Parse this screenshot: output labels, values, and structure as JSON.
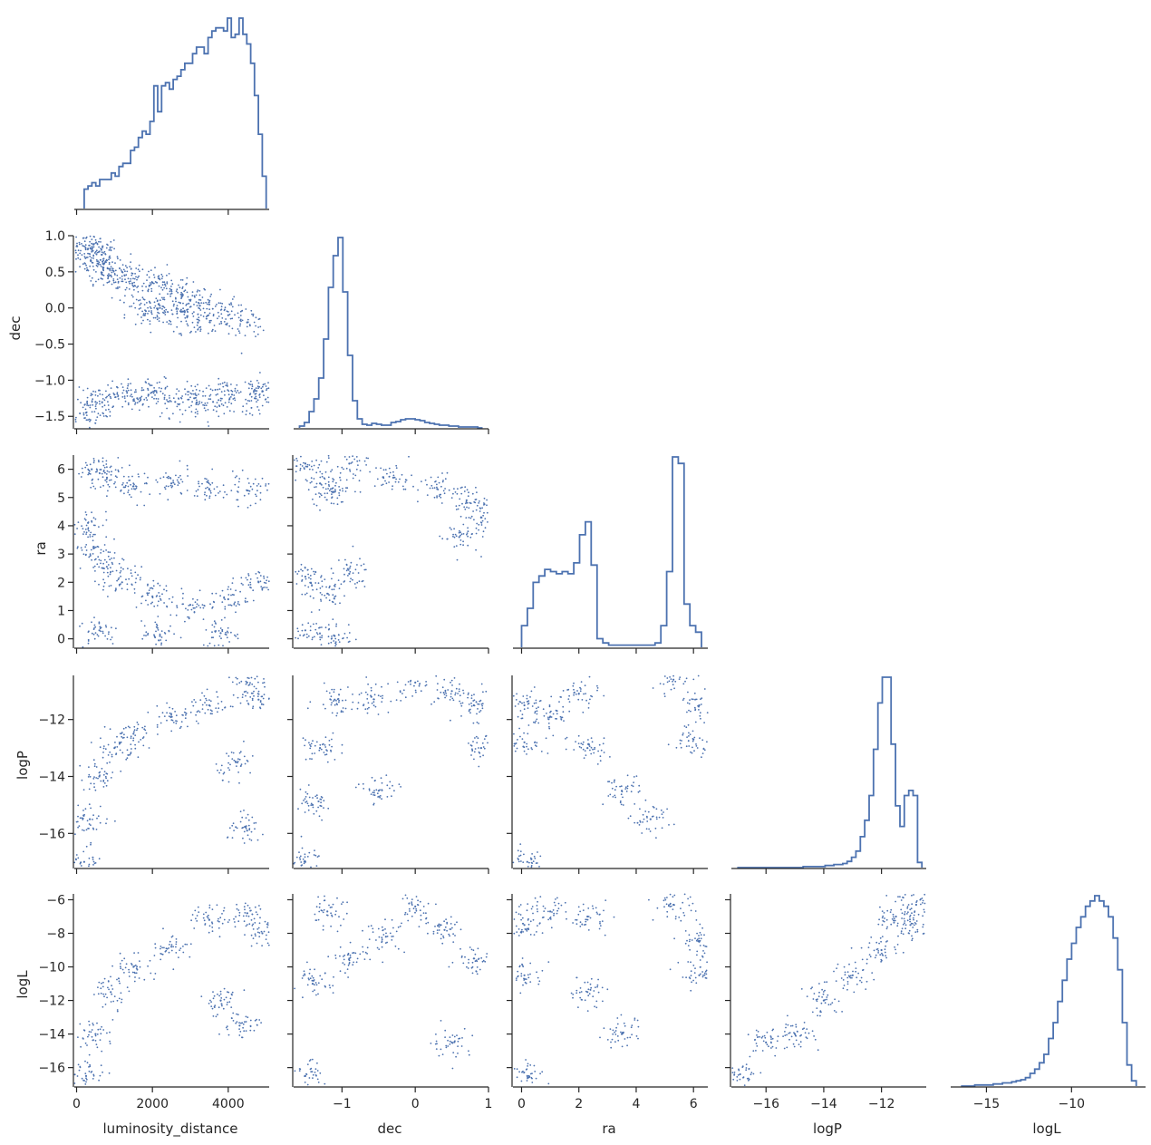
{
  "chart_data": {
    "type": "scatter",
    "variables": [
      "luminosity_distance",
      "dec",
      "ra",
      "logP",
      "logL"
    ],
    "axis_labels": {
      "luminosity_distance": "luminosity_distance",
      "dec": "dec",
      "ra": "ra",
      "logP": "logP",
      "logL": "logL"
    },
    "ranges": {
      "luminosity_distance": [
        -60,
        5080
      ],
      "dec": [
        -1.66,
        1.0
      ],
      "ra": [
        -0.3,
        6.5
      ],
      "logP": [
        -17.2,
        -10.45
      ],
      "logL": [
        -17.1,
        -5.65
      ]
    },
    "ticks": {
      "luminosity_distance": [
        0,
        2000,
        4000
      ],
      "dec": [
        -1,
        0,
        1
      ],
      "ra": [
        0,
        2,
        4,
        6
      ],
      "logP": [
        -16,
        -14,
        -12
      ],
      "logL": [
        -15,
        -10
      ]
    },
    "tick_labels": {
      "luminosity_distance": [
        "0",
        "2000",
        "4000"
      ],
      "dec": [
        "−1",
        "0",
        "1"
      ],
      "ra": [
        "0",
        "2",
        "4",
        "6"
      ],
      "logP": [
        "−16",
        "−14",
        "−12"
      ],
      "logL": [
        "−15",
        "−10"
      ]
    },
    "y_ticks": {
      "dec": [
        1.0,
        0.5,
        0.0,
        -0.5,
        -1.0,
        -1.5
      ],
      "ra": [
        6,
        5,
        4,
        3,
        2,
        1,
        0
      ],
      "logP": [
        -12,
        -14,
        -16
      ],
      "logL": [
        -6,
        -8,
        -10,
        -12,
        -14,
        -16
      ]
    },
    "y_tick_labels": {
      "dec": [
        "1.0",
        "0.5",
        "0.0",
        "−0.5",
        "−1.0",
        "−1.5"
      ],
      "ra": [
        "6",
        "5",
        "4",
        "3",
        "2",
        "1",
        "0"
      ],
      "logP": [
        "−12",
        "−14",
        "−16"
      ],
      "logL": [
        "−6",
        "−8",
        "−10",
        "−12",
        "−14",
        "−16"
      ]
    },
    "marginals": {
      "luminosity_distance": {
        "edges": [
          200,
          5000
        ],
        "counts": [
          6,
          7,
          8,
          7,
          9,
          9,
          9,
          11,
          10,
          13,
          14,
          14,
          18,
          19,
          22,
          24,
          23,
          27,
          38,
          30,
          38,
          39,
          37,
          40,
          41,
          43,
          45,
          45,
          48,
          50,
          50,
          48,
          53,
          55,
          56,
          56,
          55,
          59,
          53,
          54,
          59,
          54,
          51,
          45,
          35,
          23,
          10
        ]
      },
      "dec": {
        "edges": [
          -1.58,
          0.92
        ],
        "counts": [
          2,
          6,
          18,
          32,
          55,
          98,
          155,
          190,
          210,
          150,
          80,
          30,
          10,
          4,
          3,
          5,
          4,
          3,
          3,
          6,
          7,
          9,
          10,
          10,
          9,
          8,
          6,
          5,
          4,
          3,
          3,
          2,
          2,
          1,
          1,
          1,
          1,
          0
        ]
      },
      "ra": {
        "edges": [
          0.0,
          6.28
        ],
        "counts": [
          10,
          18,
          30,
          33,
          36,
          35,
          34,
          35,
          34,
          39,
          52,
          58,
          38,
          4,
          2,
          1,
          1,
          1,
          1,
          1,
          1,
          1,
          1,
          2,
          10,
          35,
          88,
          85,
          20,
          10,
          7
        ]
      },
      "logP": {
        "edges": [
          -17.0,
          -10.6
        ],
        "counts": [
          0,
          0,
          0,
          0,
          0,
          0,
          0,
          0,
          0,
          0,
          0,
          0,
          0,
          0,
          0,
          1,
          1,
          1,
          1,
          1,
          2,
          2,
          3,
          3,
          4,
          6,
          10,
          16,
          30,
          46,
          70,
          115,
          160,
          185,
          185,
          120,
          60,
          40,
          70,
          75,
          70,
          5
        ]
      },
      "logL": {
        "edges": [
          -16.5,
          -6.2
        ],
        "counts": [
          0,
          0,
          0,
          1,
          1,
          1,
          1,
          2,
          2,
          3,
          3,
          4,
          5,
          6,
          8,
          12,
          16,
          22,
          30,
          45,
          60,
          80,
          100,
          120,
          135,
          150,
          160,
          170,
          175,
          180,
          175,
          170,
          160,
          140,
          110,
          60,
          20,
          5
        ]
      }
    },
    "scatter_series": {
      "luminosity_distance-dec": [
        [
          300,
          0.82
        ],
        [
          450,
          0.88
        ],
        [
          380,
          0.65
        ],
        [
          600,
          0.78
        ],
        [
          700,
          0.55
        ],
        [
          900,
          0.45
        ],
        [
          1200,
          0.5
        ],
        [
          1500,
          0.3
        ],
        [
          2000,
          0.35
        ],
        [
          2500,
          0.25
        ],
        [
          3000,
          0.1
        ],
        [
          3500,
          0.05
        ],
        [
          4000,
          -0.1
        ],
        [
          4500,
          -0.2
        ],
        [
          1800,
          -0.1
        ],
        [
          2200,
          0.0
        ],
        [
          2800,
          -0.05
        ],
        [
          3200,
          -0.2
        ],
        [
          250,
          -1.45
        ],
        [
          500,
          -1.3
        ],
        [
          1000,
          -1.2
        ],
        [
          1600,
          -1.25
        ],
        [
          2100,
          -1.15
        ],
        [
          2600,
          -1.3
        ],
        [
          3100,
          -1.25
        ],
        [
          3600,
          -1.3
        ],
        [
          4100,
          -1.2
        ],
        [
          4700,
          -1.25
        ],
        [
          4900,
          -1.15
        ]
      ],
      "luminosity_distance-ra": [
        [
          400,
          6.0
        ],
        [
          800,
          5.7
        ],
        [
          1500,
          5.4
        ],
        [
          2500,
          5.5
        ],
        [
          3500,
          5.3
        ],
        [
          4500,
          5.25
        ],
        [
          300,
          4.1
        ],
        [
          450,
          3.2
        ],
        [
          700,
          2.5
        ],
        [
          1200,
          2.0
        ],
        [
          2000,
          1.5
        ],
        [
          3000,
          1.2
        ],
        [
          4000,
          1.4
        ],
        [
          4800,
          2.0
        ],
        [
          600,
          0.3
        ],
        [
          2200,
          0.1
        ],
        [
          3800,
          0.2
        ]
      ],
      "luminosity_distance-logP": [
        [
          200,
          -17.0
        ],
        [
          350,
          -15.5
        ],
        [
          600,
          -14.0
        ],
        [
          1000,
          -13.0
        ],
        [
          1500,
          -12.5
        ],
        [
          2500,
          -11.9
        ],
        [
          3500,
          -11.5
        ],
        [
          4500,
          -10.7
        ],
        [
          4800,
          -11.3
        ],
        [
          4200,
          -13.5
        ],
        [
          4500,
          -15.9
        ]
      ],
      "luminosity_distance-logL": [
        [
          250,
          -16.5
        ],
        [
          500,
          -14.0
        ],
        [
          900,
          -11.5
        ],
        [
          1500,
          -10.0
        ],
        [
          2500,
          -8.8
        ],
        [
          3500,
          -7.2
        ],
        [
          4500,
          -6.8
        ],
        [
          4900,
          -8.0
        ],
        [
          4300,
          -13.5
        ],
        [
          3800,
          -12.0
        ]
      ],
      "dec-ra": [
        [
          -1.5,
          6.2
        ],
        [
          -1.3,
          5.5
        ],
        [
          -1.1,
          5.2
        ],
        [
          -0.9,
          6.2
        ],
        [
          -0.3,
          5.7
        ],
        [
          0.3,
          5.3
        ],
        [
          0.7,
          4.9
        ],
        [
          0.9,
          4.3
        ],
        [
          0.6,
          3.6
        ],
        [
          -1.5,
          2.2
        ],
        [
          -1.2,
          1.6
        ],
        [
          -0.9,
          2.3
        ],
        [
          -1.5,
          0.3
        ],
        [
          -1.1,
          0.1
        ]
      ],
      "dec-logP": [
        [
          -1.5,
          -17.0
        ],
        [
          -1.4,
          -15.0
        ],
        [
          -1.3,
          -13.0
        ],
        [
          -1.1,
          -11.3
        ],
        [
          -0.6,
          -11.2
        ],
        [
          0.0,
          -10.7
        ],
        [
          0.5,
          -11.0
        ],
        [
          0.8,
          -11.5
        ],
        [
          0.9,
          -13.0
        ],
        [
          -0.5,
          -14.5
        ]
      ],
      "dec-logL": [
        [
          -1.5,
          -16.5
        ],
        [
          -1.4,
          -11.0
        ],
        [
          -1.2,
          -6.7
        ],
        [
          -0.9,
          -9.5
        ],
        [
          -0.4,
          -8.2
        ],
        [
          0.0,
          -6.4
        ],
        [
          0.4,
          -7.8
        ],
        [
          0.8,
          -9.5
        ],
        [
          0.5,
          -14.5
        ]
      ],
      "ra-logP": [
        [
          0.1,
          -11.5
        ],
        [
          0.1,
          -12.8
        ],
        [
          0.2,
          -17.0
        ],
        [
          1.0,
          -11.9
        ],
        [
          2.0,
          -11.1
        ],
        [
          2.3,
          -13.0
        ],
        [
          3.5,
          -14.5
        ],
        [
          4.5,
          -15.5
        ],
        [
          5.3,
          -10.6
        ],
        [
          6.2,
          -11.5
        ],
        [
          6.0,
          -12.7
        ]
      ],
      "ra-logL": [
        [
          0.1,
          -7.5
        ],
        [
          0.1,
          -10.5
        ],
        [
          0.2,
          -16.5
        ],
        [
          1.0,
          -6.7
        ],
        [
          2.3,
          -7.0
        ],
        [
          2.3,
          -11.5
        ],
        [
          3.5,
          -14.0
        ],
        [
          5.3,
          -6.3
        ],
        [
          6.2,
          -8.5
        ],
        [
          6.2,
          -10.5
        ]
      ],
      "logP-logL": [
        [
          -16.9,
          -16.4
        ],
        [
          -16.0,
          -14.5
        ],
        [
          -15.0,
          -14.0
        ],
        [
          -14.0,
          -12.0
        ],
        [
          -13.0,
          -10.5
        ],
        [
          -12.0,
          -9.0
        ],
        [
          -11.5,
          -7.0
        ],
        [
          -11.0,
          -7.5
        ],
        [
          -10.8,
          -6.3
        ]
      ]
    }
  }
}
